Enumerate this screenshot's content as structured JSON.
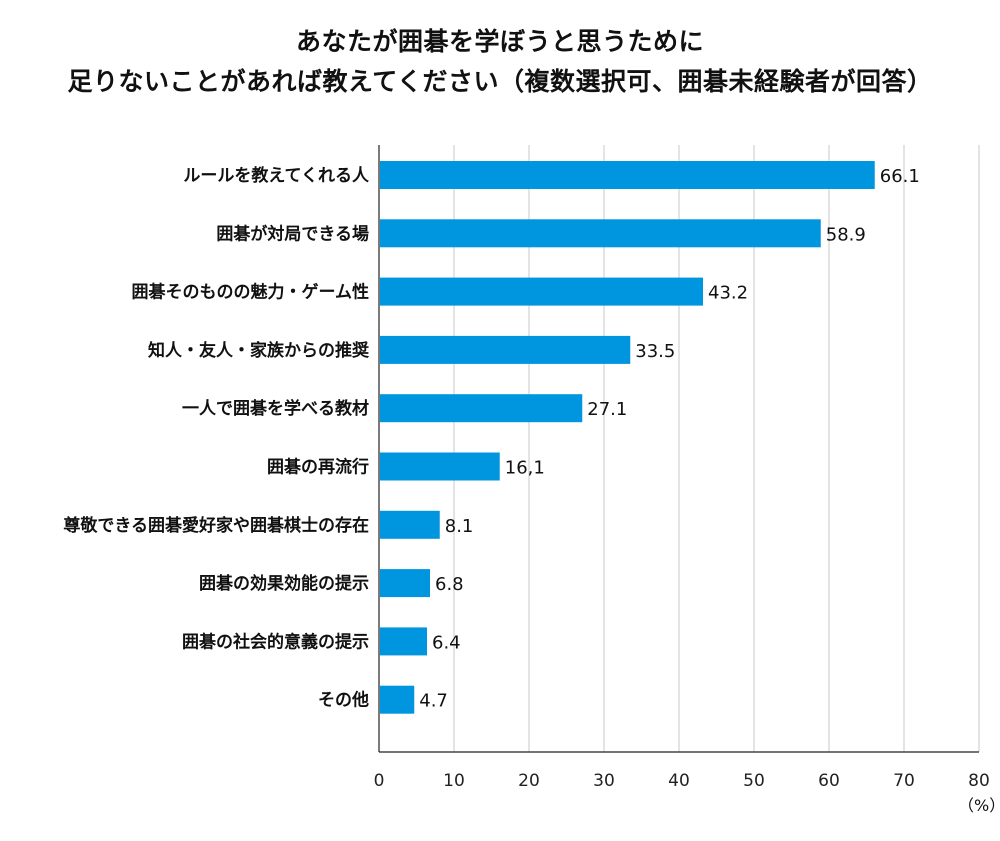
{
  "title_lines": [
    "あなたが囲碁を学ぼうと思うために",
    "足りないことがあれば教えてください（複数選択可、囲碁未経験者が回答）"
  ],
  "unit_label": "（%）",
  "chart_data": {
    "type": "bar",
    "orientation": "horizontal",
    "title": "あなたが囲碁を学ぼうと思うために 足りないことがあれば教えてください（複数選択可、囲碁未経験者が回答）",
    "xlabel": "（%）",
    "ylabel": "",
    "xlim": [
      0,
      80
    ],
    "xticks": [
      0,
      10,
      20,
      30,
      40,
      50,
      60,
      70,
      80
    ],
    "grid": true,
    "bar_color": "#0096df",
    "categories": [
      "ルールを教えてくれる人",
      "囲碁が対局できる場",
      "囲碁そのものの魅力・ゲーム性",
      "知人・友人・家族からの推奨",
      "一人で囲碁を学べる教材",
      "囲碁の再流行",
      "尊敬できる囲碁愛好家や囲碁棋士の存在",
      "囲碁の効果効能の提示",
      "囲碁の社会的意義の提示",
      "その他"
    ],
    "values": [
      66.1,
      58.9,
      43.2,
      33.5,
      27.1,
      16.1,
      8.1,
      6.8,
      6.4,
      4.7
    ],
    "value_labels": [
      "66.1",
      "58.9",
      "43.2",
      "33.5",
      "27.1",
      "16,1",
      "8.1",
      "6.8",
      "6.4",
      "4.7"
    ]
  }
}
